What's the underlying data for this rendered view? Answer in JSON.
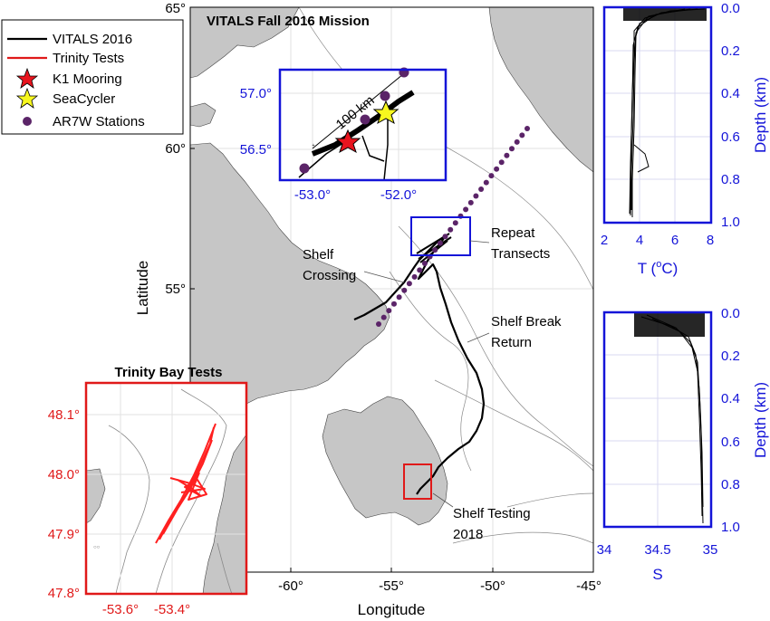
{
  "colors": {
    "land": "#c6c6c6",
    "sea": "#ffffff",
    "frame": "#000000",
    "blue": "#1414d8",
    "red": "#e01919",
    "track": "#000000",
    "trinity": "#ff2020",
    "k1": "#e8141e",
    "seacycler": "#f7f71e",
    "stations": "#5b2468",
    "contour": "#8a8a8a"
  },
  "main_map": {
    "title": "VITALS Fall 2016 Mission",
    "x_label": "Longitude",
    "y_label": "Latitude",
    "lat_ticks": [
      "65°",
      "60°",
      "55°"
    ],
    "lon_ticks": [
      "-60°",
      "-55°",
      "-50°",
      "-45°"
    ],
    "annotations": {
      "repeat_1": "Repeat",
      "repeat_2": "Transects",
      "shelf_crossing_1": "Shelf",
      "shelf_crossing_2": "Crossing",
      "shelf_break_1": "Shelf Break",
      "shelf_break_2": "Return",
      "shelf_testing_1": "Shelf Testing",
      "shelf_testing_2": "2018"
    }
  },
  "legend": {
    "items": [
      {
        "label": "VITALS 2016",
        "icon": "black-line-icon"
      },
      {
        "label": "Trinity Tests",
        "icon": "red-line-icon"
      },
      {
        "label": "K1 Mooring",
        "icon": "red-star-icon"
      },
      {
        "label": "SeaCycler",
        "icon": "yellow-star-icon"
      },
      {
        "label": "AR7W Stations",
        "icon": "purple-dot-icon"
      }
    ]
  },
  "zoom_inset": {
    "scale_label": "100 km",
    "y_ticks": [
      "57.0°",
      "56.5°"
    ],
    "x_ticks": [
      "-53.0°",
      "-52.0°"
    ]
  },
  "trinity_inset": {
    "title": "Trinity Bay Tests",
    "y_ticks": [
      "48.1°",
      "48.0°",
      "47.9°",
      "47.8°"
    ],
    "x_ticks": [
      "-53.6°",
      "-53.4°"
    ]
  },
  "profile_T": {
    "x_label": "T (",
    "x_label_sup": "o",
    "x_label_end": "C)",
    "x_ticks": [
      "2",
      "4",
      "6",
      "8"
    ],
    "y_ticks": [
      "0.0",
      "0.2",
      "0.4",
      "0.6",
      "0.8",
      "1.0"
    ],
    "y_label": "Depth (km)"
  },
  "profile_S": {
    "x_label": "S",
    "x_ticks": [
      "34",
      "34.5",
      "35"
    ],
    "y_ticks": [
      "0.0",
      "0.2",
      "0.4",
      "0.6",
      "0.8",
      "1.0"
    ],
    "y_label": "Depth (km)"
  }
}
